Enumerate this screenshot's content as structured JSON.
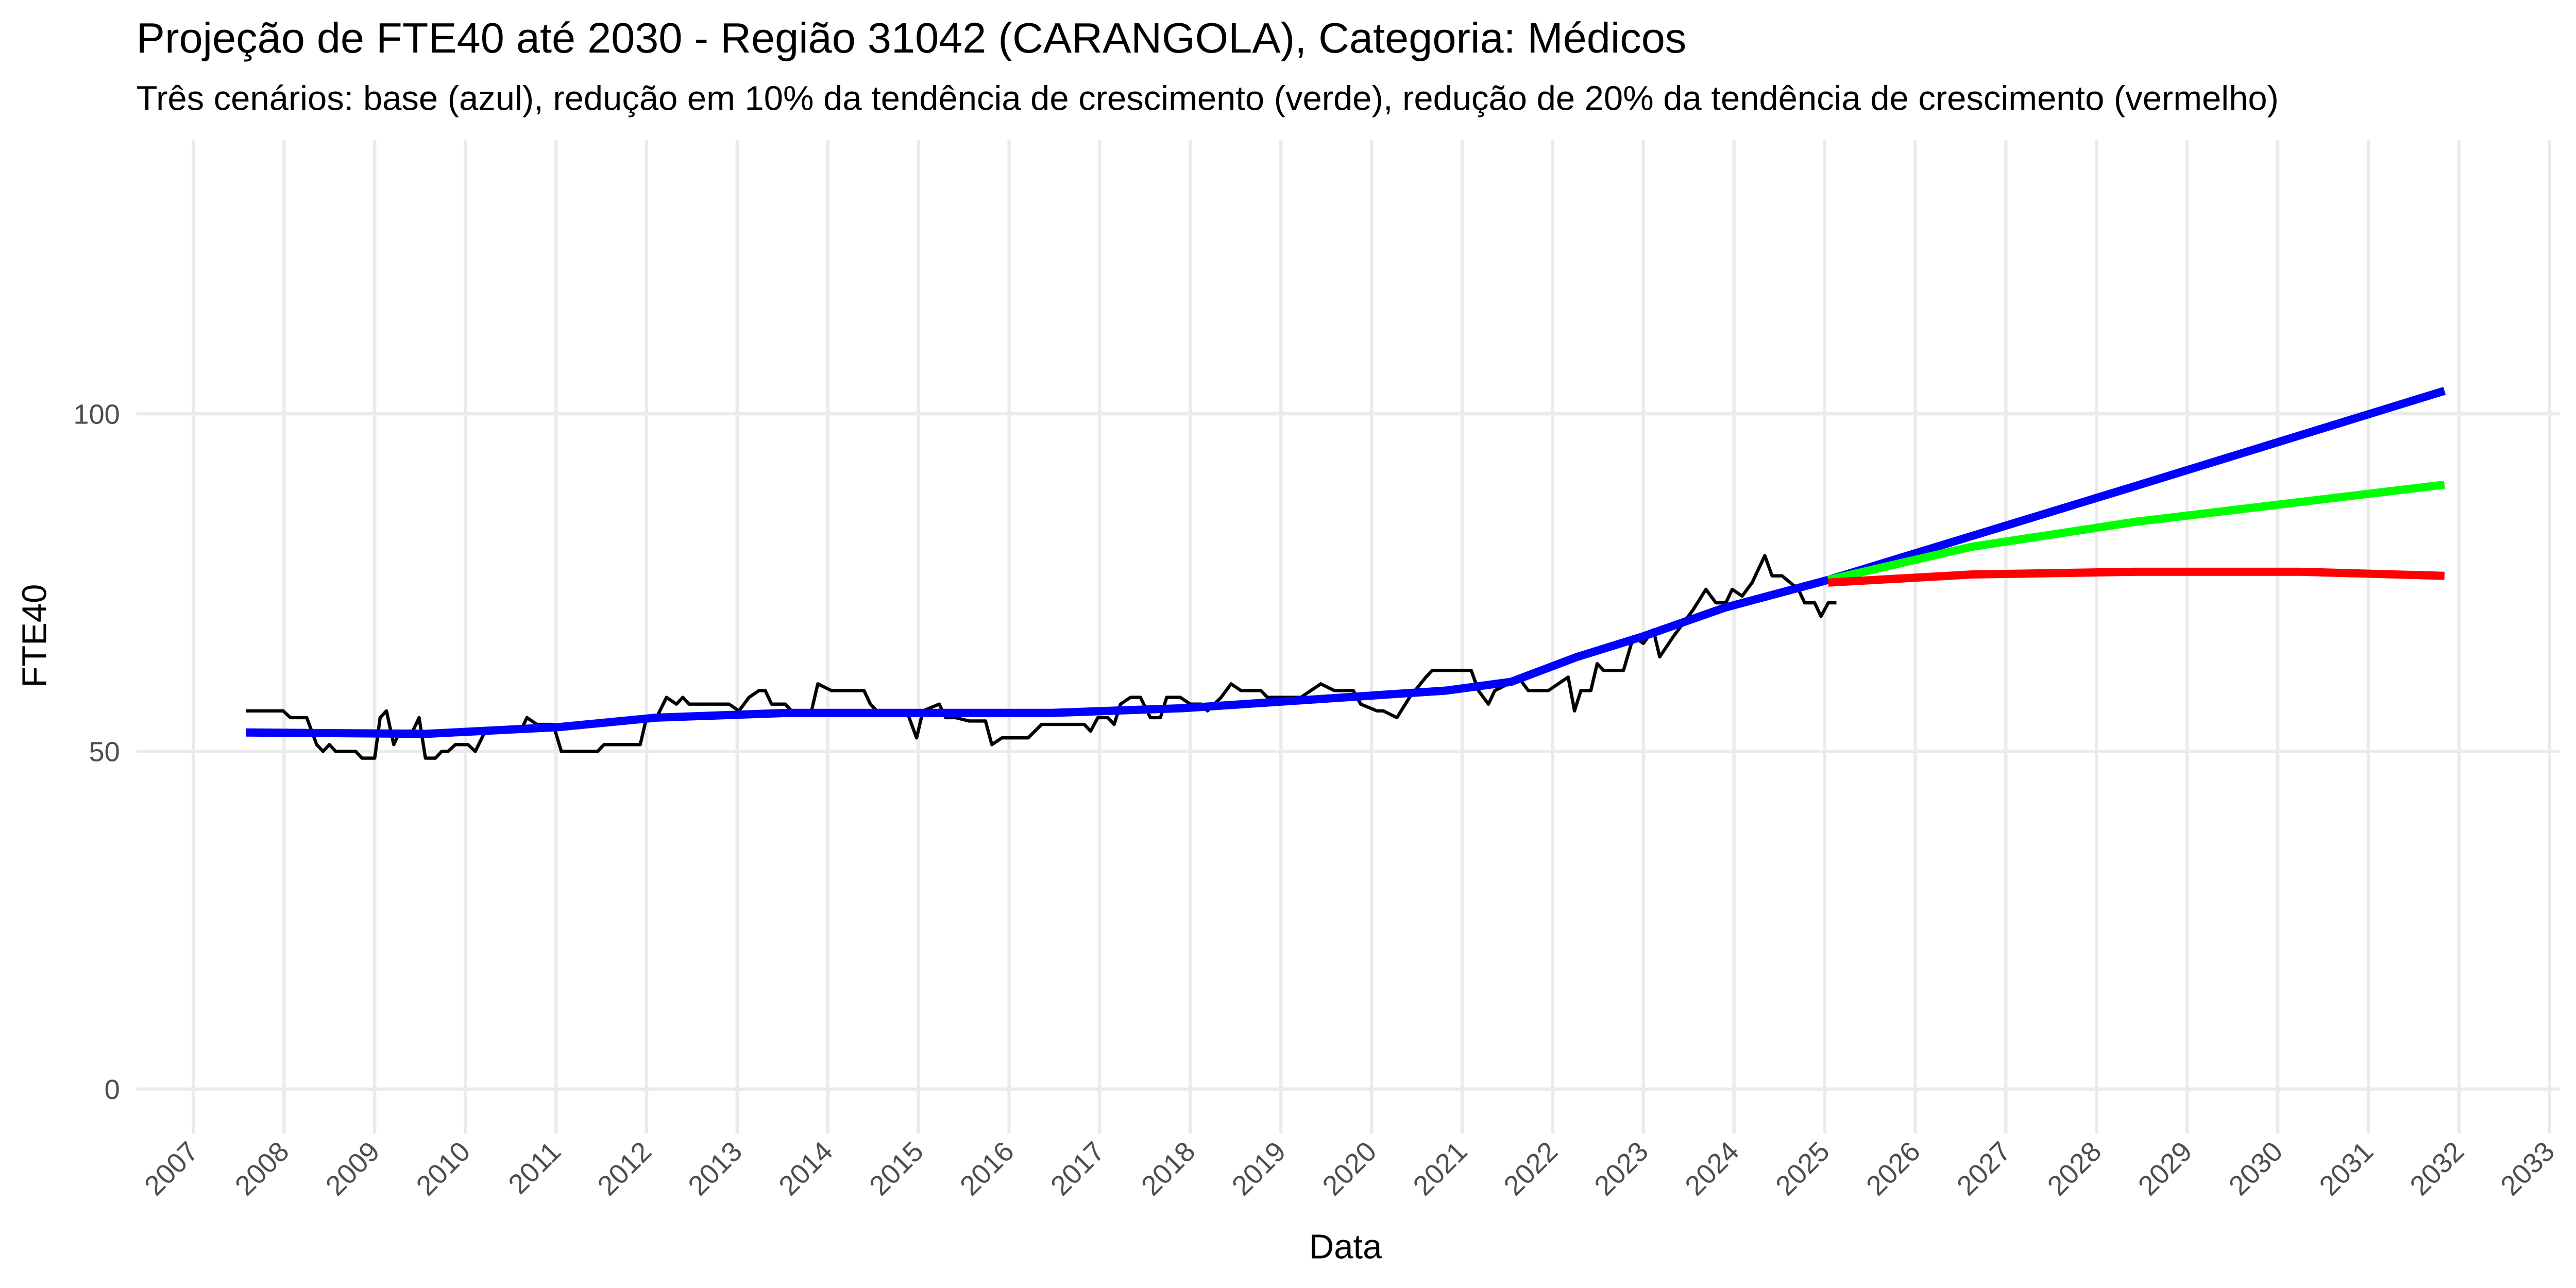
{
  "chart_data": {
    "type": "line",
    "title": "Projeção de FTE40 até 2030 - Região 31042 (CARANGOLA), Categoria: Médicos",
    "subtitle": "Três cenários: base (azul), redução em 10% da tendência de crescimento (verde), redução de 20% da tendência de crescimento (vermelho)",
    "x_label": "Data",
    "y_label": "FTE40",
    "xlim": [
      2006.37,
      2033.11
    ],
    "ylim": [
      -6.6,
      140.6
    ],
    "xticks": [
      2007,
      2008,
      2009,
      2010,
      2011,
      2012,
      2013,
      2014,
      2015,
      2016,
      2017,
      2018,
      2019,
      2020,
      2021,
      2022,
      2023,
      2024,
      2025,
      2026,
      2027,
      2028,
      2029,
      2030,
      2031,
      2032,
      2033
    ],
    "yticks": [
      0,
      50,
      100
    ],
    "grid": true,
    "series": [
      {
        "color": "#000000",
        "x": [
          2007.58,
          2007.99,
          2008.07,
          2008.25,
          2008.36,
          2008.43,
          2008.5,
          2008.57,
          2008.79,
          2008.86,
          2009.0,
          2009.06,
          2009.13,
          2009.21,
          2009.28,
          2009.42,
          2009.49,
          2009.56,
          2009.67,
          2009.74,
          2009.81,
          2009.89,
          2010.03,
          2010.11,
          2010.22,
          2010.29,
          2010.61,
          2010.68,
          2010.79,
          2010.97,
          2011.06,
          2011.46,
          2011.53,
          2011.93,
          2012.0,
          2012.11,
          2012.22,
          2012.33,
          2012.4,
          2012.47,
          2012.91,
          2013.02,
          2013.13,
          2013.24,
          2013.31,
          2013.38,
          2013.53,
          2013.6,
          2013.82,
          2013.89,
          2014.04,
          2014.11,
          2014.4,
          2014.47,
          2014.54,
          2014.87,
          2014.98,
          2015.05,
          2015.23,
          2015.3,
          2015.41,
          2015.56,
          2015.74,
          2015.81,
          2015.92,
          2016.21,
          2016.36,
          2016.83,
          2016.9,
          2016.98,
          2017.09,
          2017.16,
          2017.23,
          2017.34,
          2017.45,
          2017.56,
          2017.67,
          2017.74,
          2017.89,
          2018.0,
          2018.12,
          2018.19,
          2018.34,
          2018.45,
          2018.56,
          2018.78,
          2018.85,
          2019.22,
          2019.33,
          2019.44,
          2019.59,
          2019.8,
          2019.88,
          2020.06,
          2020.13,
          2020.28,
          2020.42,
          2020.6,
          2020.67,
          2021.1,
          2021.18,
          2021.29,
          2021.36,
          2021.51,
          2021.62,
          2021.73,
          2021.95,
          2022.06,
          2022.17,
          2022.24,
          2022.31,
          2022.42,
          2022.49,
          2022.56,
          2022.78,
          2022.89,
          2023.0,
          2023.11,
          2023.18,
          2023.33,
          2023.44,
          2023.55,
          2023.69,
          2023.8,
          2023.91,
          2023.98,
          2024.09,
          2024.2,
          2024.27,
          2024.34,
          2024.42,
          2024.53,
          2024.71,
          2024.78,
          2024.89,
          2024.96,
          2025.04,
          2025.13
        ],
        "values": [
          56,
          56,
          55,
          55,
          51,
          50,
          51,
          50,
          50,
          49,
          49,
          55,
          56,
          51,
          53,
          53,
          55,
          49,
          49,
          50,
          50,
          51,
          51,
          50,
          53,
          53,
          53,
          55,
          54,
          54,
          50,
          50,
          51,
          51,
          55,
          55,
          58,
          57,
          58,
          57,
          57,
          56,
          58,
          59,
          59,
          57,
          57,
          56,
          56,
          60,
          59,
          59,
          59,
          57,
          56,
          56,
          52,
          56,
          57,
          55,
          55,
          54.5,
          54.5,
          51,
          52,
          52,
          54,
          54,
          53,
          55,
          55,
          54,
          57,
          58,
          58,
          55,
          55,
          58,
          58,
          57,
          57,
          56,
          58,
          60,
          59,
          59,
          58,
          58,
          59,
          60,
          59,
          59,
          57,
          56,
          56,
          55,
          58,
          61,
          62,
          62,
          59,
          57,
          59,
          60,
          61,
          59,
          59,
          60,
          61,
          56,
          59,
          59,
          63,
          62,
          62,
          67,
          66,
          68,
          64,
          67,
          69,
          71,
          74,
          72,
          72,
          74,
          73,
          75,
          77,
          79,
          76,
          76,
          74,
          72,
          72,
          70,
          72,
          72
        ]
      },
      {
        "color": "#0000ff",
        "x": [
          2007.58,
          2009.57,
          2011.03,
          2012.11,
          2013.56,
          2015.01,
          2016.47,
          2017.92,
          2019.37,
          2020.82,
          2021.54,
          2022.27,
          2022.99,
          2023.9,
          2025.04,
          2028.43,
          2031.84
        ],
        "values": [
          52.8,
          52.6,
          53.6,
          55,
          55.7,
          55.7,
          55.7,
          56.4,
          57.7,
          59,
          60.3,
          64,
          67,
          71.3,
          75.4,
          89.3,
          103.4
        ]
      },
      {
        "color": "#00ff00",
        "x": [
          2025.04,
          2026.62,
          2028.43,
          2031.84
        ],
        "values": [
          75.4,
          80.3,
          84,
          89.5
        ]
      },
      {
        "color": "#ff0000",
        "x": [
          2025.04,
          2026.62,
          2028.43,
          2030.25,
          2031.84
        ],
        "values": [
          75,
          76.2,
          76.6,
          76.6,
          76
        ]
      }
    ]
  }
}
